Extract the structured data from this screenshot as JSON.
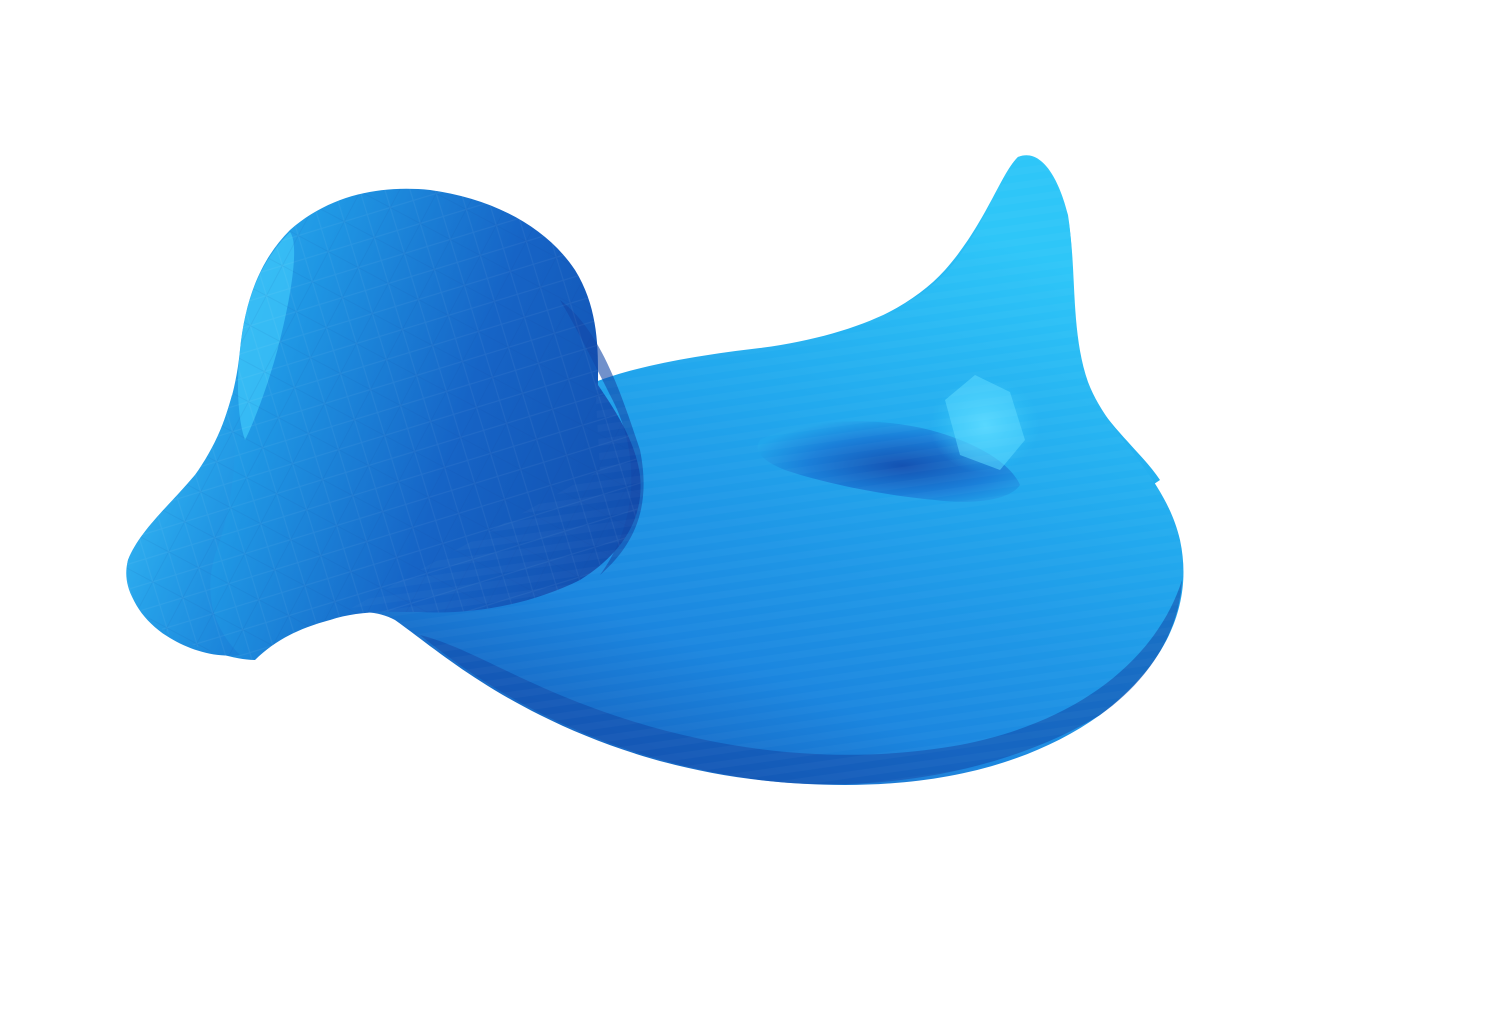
{
  "scene": {
    "object": "duck-shaped-mesh",
    "background_color": "#ffffff",
    "colors": {
      "highlight": "#5ad8ff",
      "light": "#2ec6f8",
      "mid": "#1f9be6",
      "main": "#1b86df",
      "shadow": "#1455b8",
      "deep": "#1248a8"
    }
  }
}
